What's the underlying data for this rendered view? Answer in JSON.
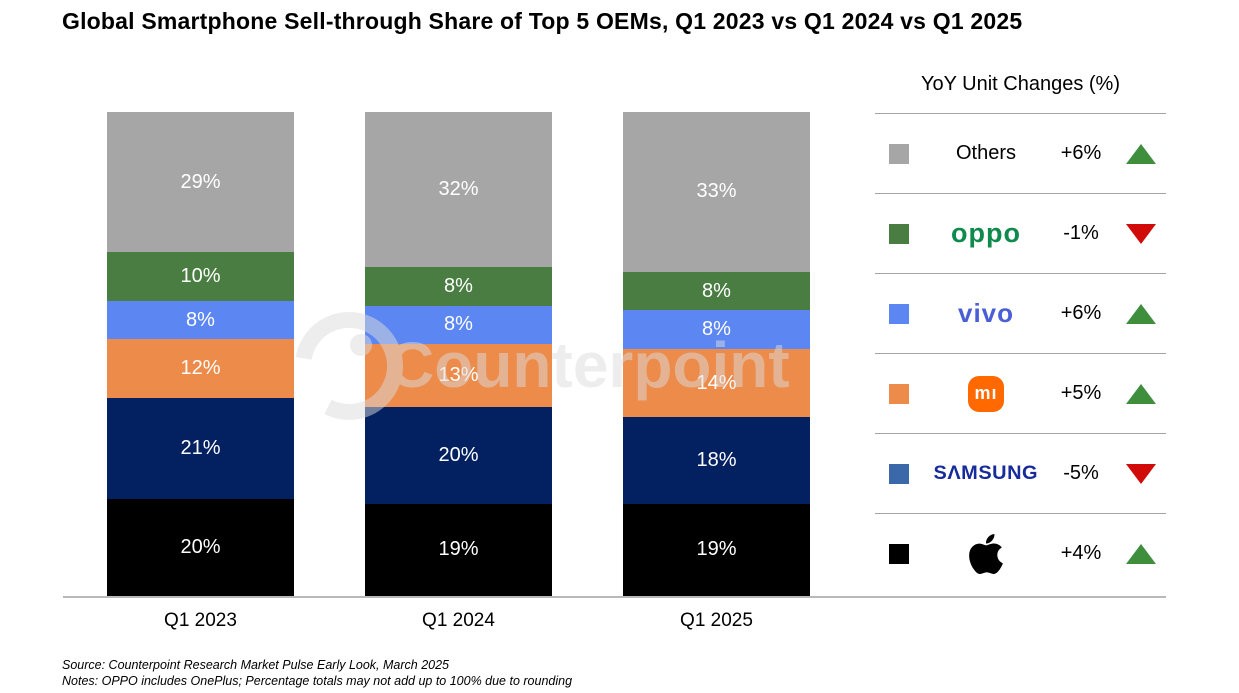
{
  "title": "Global Smartphone Sell-through Share of Top 5 OEMs, Q1 2023 vs Q1 2024 vs Q1 2025",
  "watermark": {
    "text": "Counterpoint",
    "logo": "counterpoint-c-ring-icon"
  },
  "chart_data": {
    "type": "bar",
    "stacked": true,
    "stack_order": "bottom-to-top",
    "categories": [
      "Q1 2023",
      "Q1 2024",
      "Q1 2025"
    ],
    "series": [
      {
        "name": "Apple",
        "color": "#000000",
        "values": [
          20,
          19,
          19
        ]
      },
      {
        "name": "Samsung",
        "color": "#032061",
        "values": [
          21,
          20,
          18
        ]
      },
      {
        "name": "Xiaomi",
        "color": "#ec8b4a",
        "values": [
          12,
          13,
          14
        ]
      },
      {
        "name": "vivo",
        "color": "#5c87f2",
        "values": [
          8,
          8,
          8
        ]
      },
      {
        "name": "OPPO",
        "color": "#4a7d42",
        "values": [
          10,
          8,
          8
        ]
      },
      {
        "name": "Others",
        "color": "#a6a6a6",
        "values": [
          29,
          32,
          33
        ]
      }
    ],
    "value_suffix": "%",
    "label_color": "#ffffff",
    "ylim": [
      0,
      100
    ],
    "grid": false,
    "legend_position": "right"
  },
  "legend": {
    "title": "YoY Unit Changes (%)",
    "rows": [
      {
        "name": "Others",
        "logo": "none",
        "label": "Others",
        "change": "+6%",
        "direction": "up",
        "swatch": "#a6a6a6"
      },
      {
        "name": "OPPO",
        "logo": "oppo",
        "label": "oppo",
        "change": "-1%",
        "direction": "down",
        "swatch": "#4a7d42"
      },
      {
        "name": "vivo",
        "logo": "vivo",
        "label": "vivo",
        "change": "+6%",
        "direction": "up",
        "swatch": "#5c87f2"
      },
      {
        "name": "Xiaomi",
        "logo": "mi",
        "label": "mı",
        "change": "+5%",
        "direction": "up",
        "swatch": "#ec8b4a"
      },
      {
        "name": "Samsung",
        "logo": "samsung",
        "label": "SΛMSUNG",
        "change": "-5%",
        "direction": "down",
        "swatch": "#3a68a8"
      },
      {
        "name": "Apple",
        "logo": "apple",
        "label": "",
        "change": "+4%",
        "direction": "up",
        "swatch": "#000000"
      }
    ]
  },
  "footer": {
    "source": "Source: Counterpoint Research Market Pulse Early Look, March 2025",
    "notes": "Notes: OPPO includes OnePlus; Percentage totals may not add up to 100% due to rounding"
  },
  "layout_colors": {
    "axis_line": "#b9b9b9",
    "trend_up": "#3e8e3d",
    "trend_down": "#d10a0a"
  }
}
